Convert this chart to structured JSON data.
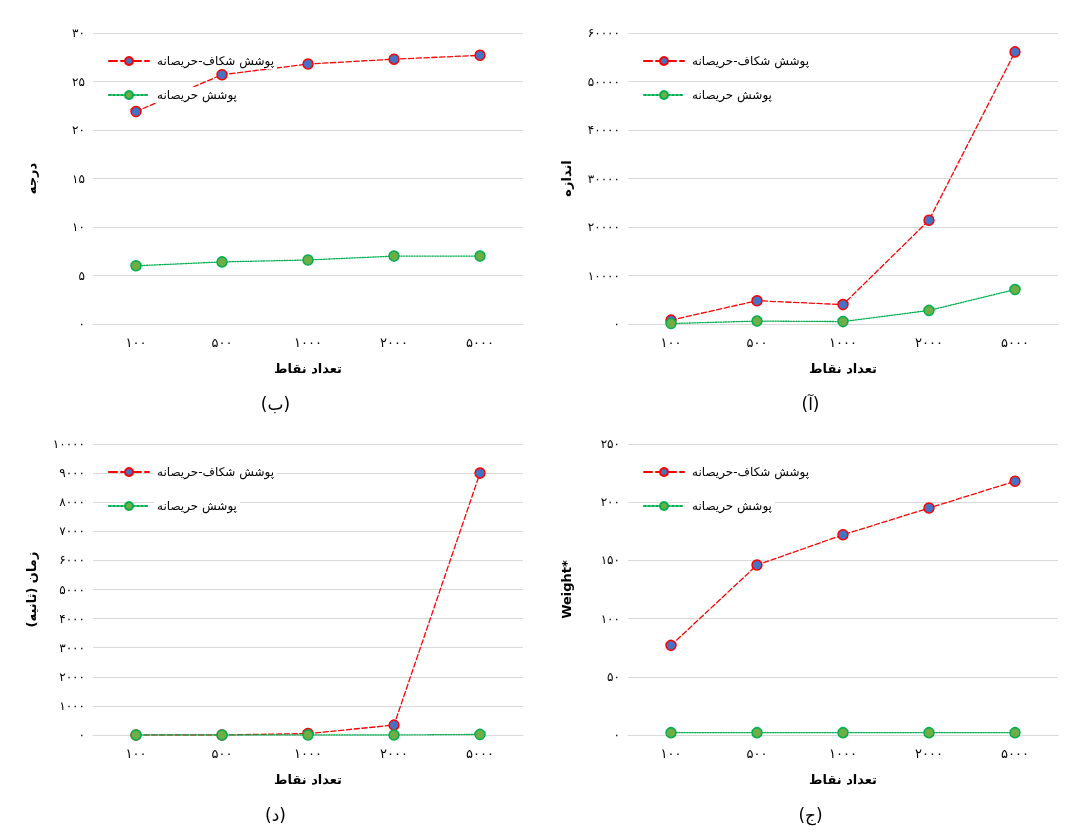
{
  "chart_data": [
    {
      "type": "line",
      "title": "(ب)",
      "xlabel": "تعداد نقاط",
      "ylabel": "درجه",
      "categories": [
        "۱۰۰",
        "۵۰۰",
        "۱۰۰۰",
        "۲۰۰۰",
        "۵۰۰۰"
      ],
      "series": [
        {
          "name": "پوشش شکاف-حریصانه",
          "color": "#ff0000",
          "line_style": "dashed",
          "values": [
            21.9,
            25.7,
            26.8,
            27.3,
            27.7
          ]
        },
        {
          "name": "پوشش حریصانه",
          "color": "#00b050",
          "line_style": "dotted",
          "values": [
            6.0,
            6.4,
            6.6,
            7.0,
            7.0
          ]
        }
      ],
      "ylim": [
        0,
        30
      ],
      "yticks": [
        {
          "value": 0,
          "label": "۰"
        },
        {
          "value": 5,
          "label": "۵"
        },
        {
          "value": 10,
          "label": "۱۰"
        },
        {
          "value": 15,
          "label": "۱۵"
        },
        {
          "value": 20,
          "label": "۲۰"
        },
        {
          "value": 25,
          "label": "۲۵"
        },
        {
          "value": 30,
          "label": "۳۰"
        }
      ],
      "grid": "y",
      "legend": "top left",
      "marker": "circle"
    },
    {
      "type": "line",
      "title": "(آ)",
      "xlabel": "تعداد نقاط",
      "ylabel": "اندازه",
      "categories": [
        "۱۰۰",
        "۵۰۰",
        "۱۰۰۰",
        "۲۰۰۰",
        "۵۰۰۰"
      ],
      "series": [
        {
          "name": "پوشش شکاف-حریصانه",
          "color": "#ff0000",
          "line_style": "dashed",
          "values": [
            800,
            4800,
            4000,
            21400,
            56100
          ]
        },
        {
          "name": "پوشش حریصانه",
          "color": "#00b050",
          "line_style": "dotted",
          "values": [
            100,
            600,
            500,
            2800,
            7100
          ]
        }
      ],
      "ylim": [
        0,
        60000
      ],
      "yticks": [
        {
          "value": 0,
          "label": "۰"
        },
        {
          "value": 10000,
          "label": "۱۰۰۰۰"
        },
        {
          "value": 20000,
          "label": "۲۰۰۰۰"
        },
        {
          "value": 30000,
          "label": "۳۰۰۰۰"
        },
        {
          "value": 40000,
          "label": "۴۰۰۰۰"
        },
        {
          "value": 50000,
          "label": "۵۰۰۰۰"
        },
        {
          "value": 60000,
          "label": "۶۰۰۰۰"
        }
      ],
      "grid": "y",
      "legend": "top left",
      "marker": "circle"
    },
    {
      "type": "line",
      "title": "(د)",
      "xlabel": "تعداد نقاط",
      "ylabel": "زمان (ثانیه)",
      "categories": [
        "۱۰۰",
        "۵۰۰",
        "۱۰۰۰",
        "۲۰۰۰",
        "۵۰۰۰"
      ],
      "series": [
        {
          "name": "پوشش شکاف-حریصانه",
          "color": "#ff0000",
          "line_style": "dashed",
          "values": [
            0,
            0,
            50,
            340,
            9000
          ]
        },
        {
          "name": "پوشش حریصانه",
          "color": "#00b050",
          "line_style": "dotted",
          "values": [
            0,
            0,
            0,
            0,
            20
          ]
        }
      ],
      "ylim": [
        0,
        10000
      ],
      "yticks": [
        {
          "value": 0,
          "label": "۰"
        },
        {
          "value": 1000,
          "label": "۱۰۰۰"
        },
        {
          "value": 2000,
          "label": "۲۰۰۰"
        },
        {
          "value": 3000,
          "label": "۳۰۰۰"
        },
        {
          "value": 4000,
          "label": "۴۰۰۰"
        },
        {
          "value": 5000,
          "label": "۵۰۰۰"
        },
        {
          "value": 6000,
          "label": "۶۰۰۰"
        },
        {
          "value": 7000,
          "label": "۷۰۰۰"
        },
        {
          "value": 8000,
          "label": "۸۰۰۰"
        },
        {
          "value": 9000,
          "label": "۹۰۰۰"
        },
        {
          "value": 10000,
          "label": "۱۰۰۰۰"
        }
      ],
      "grid": "y",
      "legend": "top left",
      "marker": "circle"
    },
    {
      "type": "line",
      "title": "(ج)",
      "xlabel": "تعداد نقاط",
      "ylabel": "Weight*",
      "categories": [
        "۱۰۰",
        "۵۰۰",
        "۱۰۰۰",
        "۲۰۰۰",
        "۵۰۰۰"
      ],
      "series": [
        {
          "name": "پوشش شکاف-حریصانه",
          "color": "#ff0000",
          "line_style": "dashed",
          "values": [
            77,
            146,
            172,
            195,
            218
          ]
        },
        {
          "name": "پوشش حریصانه",
          "color": "#00b050",
          "line_style": "dotted",
          "values": [
            2,
            2,
            2,
            2,
            2
          ]
        }
      ],
      "ylim": [
        0,
        250
      ],
      "yticks": [
        {
          "value": 0,
          "label": "۰"
        },
        {
          "value": 50,
          "label": "۵۰"
        },
        {
          "value": 100,
          "label": "۱۰۰"
        },
        {
          "value": 150,
          "label": "۱۵۰"
        },
        {
          "value": 200,
          "label": "۲۰۰"
        },
        {
          "value": 250,
          "label": "۲۵۰"
        }
      ],
      "grid": "y",
      "legend": "top left",
      "marker": "circle"
    }
  ]
}
